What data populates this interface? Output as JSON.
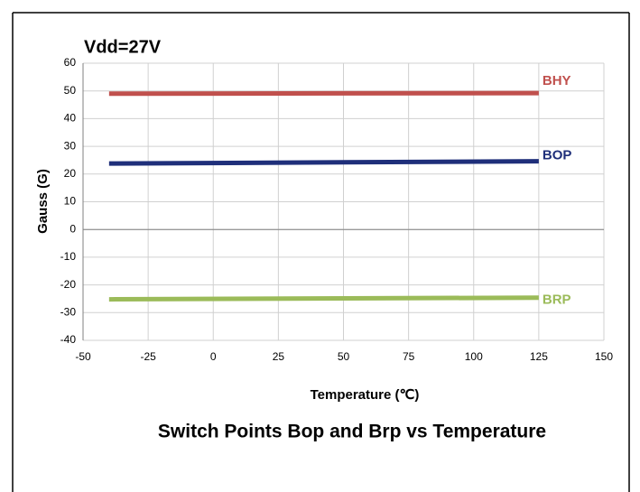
{
  "chart_data": {
    "type": "line",
    "title": "Vdd=27V",
    "y_label": "Gauss (G)",
    "x_label": "Temperature (℃)",
    "caption": "Switch Points Bop and Brp vs Temperature",
    "x": [
      -40,
      125
    ],
    "series": [
      {
        "name": "BHY",
        "color": "#c0504d",
        "values": [
          49,
          49.2
        ]
      },
      {
        "name": "BOP",
        "color": "#1f2f7a",
        "values": [
          23.8,
          24.6
        ]
      },
      {
        "name": "BRP",
        "color": "#9bbb59",
        "values": [
          -25.2,
          -24.6
        ]
      }
    ],
    "xlim": [
      -50,
      150
    ],
    "xticks": [
      -50,
      -25,
      0,
      25,
      50,
      75,
      100,
      125,
      150
    ],
    "ylim": [
      -40,
      60
    ],
    "yticks": [
      -40,
      -30,
      -20,
      -10,
      0,
      10,
      20,
      30,
      40,
      50,
      60
    ],
    "grid": true
  }
}
